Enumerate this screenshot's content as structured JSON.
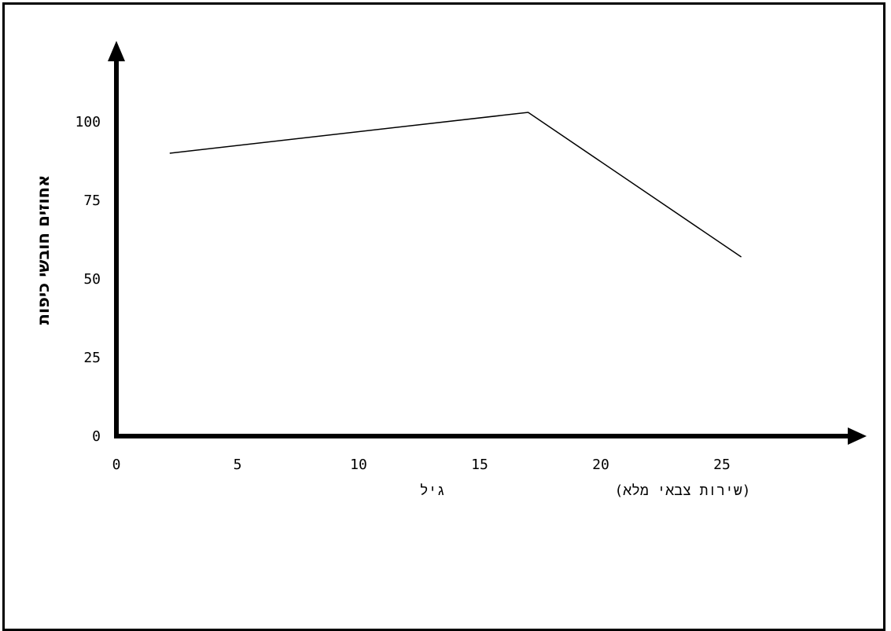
{
  "chart_data": {
    "type": "line",
    "title": "",
    "xlabel": "גיל",
    "ylabel": "אחוזים חובשי כיפות",
    "annotation": "(שירות צבאי מלא)",
    "xlim": [
      0,
      30
    ],
    "ylim": [
      0,
      115
    ],
    "x_ticks": [
      "0",
      "5",
      "10",
      "15",
      "20",
      "25"
    ],
    "y_ticks": [
      "0",
      "25",
      "50",
      "75",
      "100"
    ],
    "series": [
      {
        "x": [
          2.2,
          17,
          25.8
        ],
        "y": [
          90,
          103,
          57
        ]
      }
    ],
    "grid": false,
    "legend": "none"
  }
}
